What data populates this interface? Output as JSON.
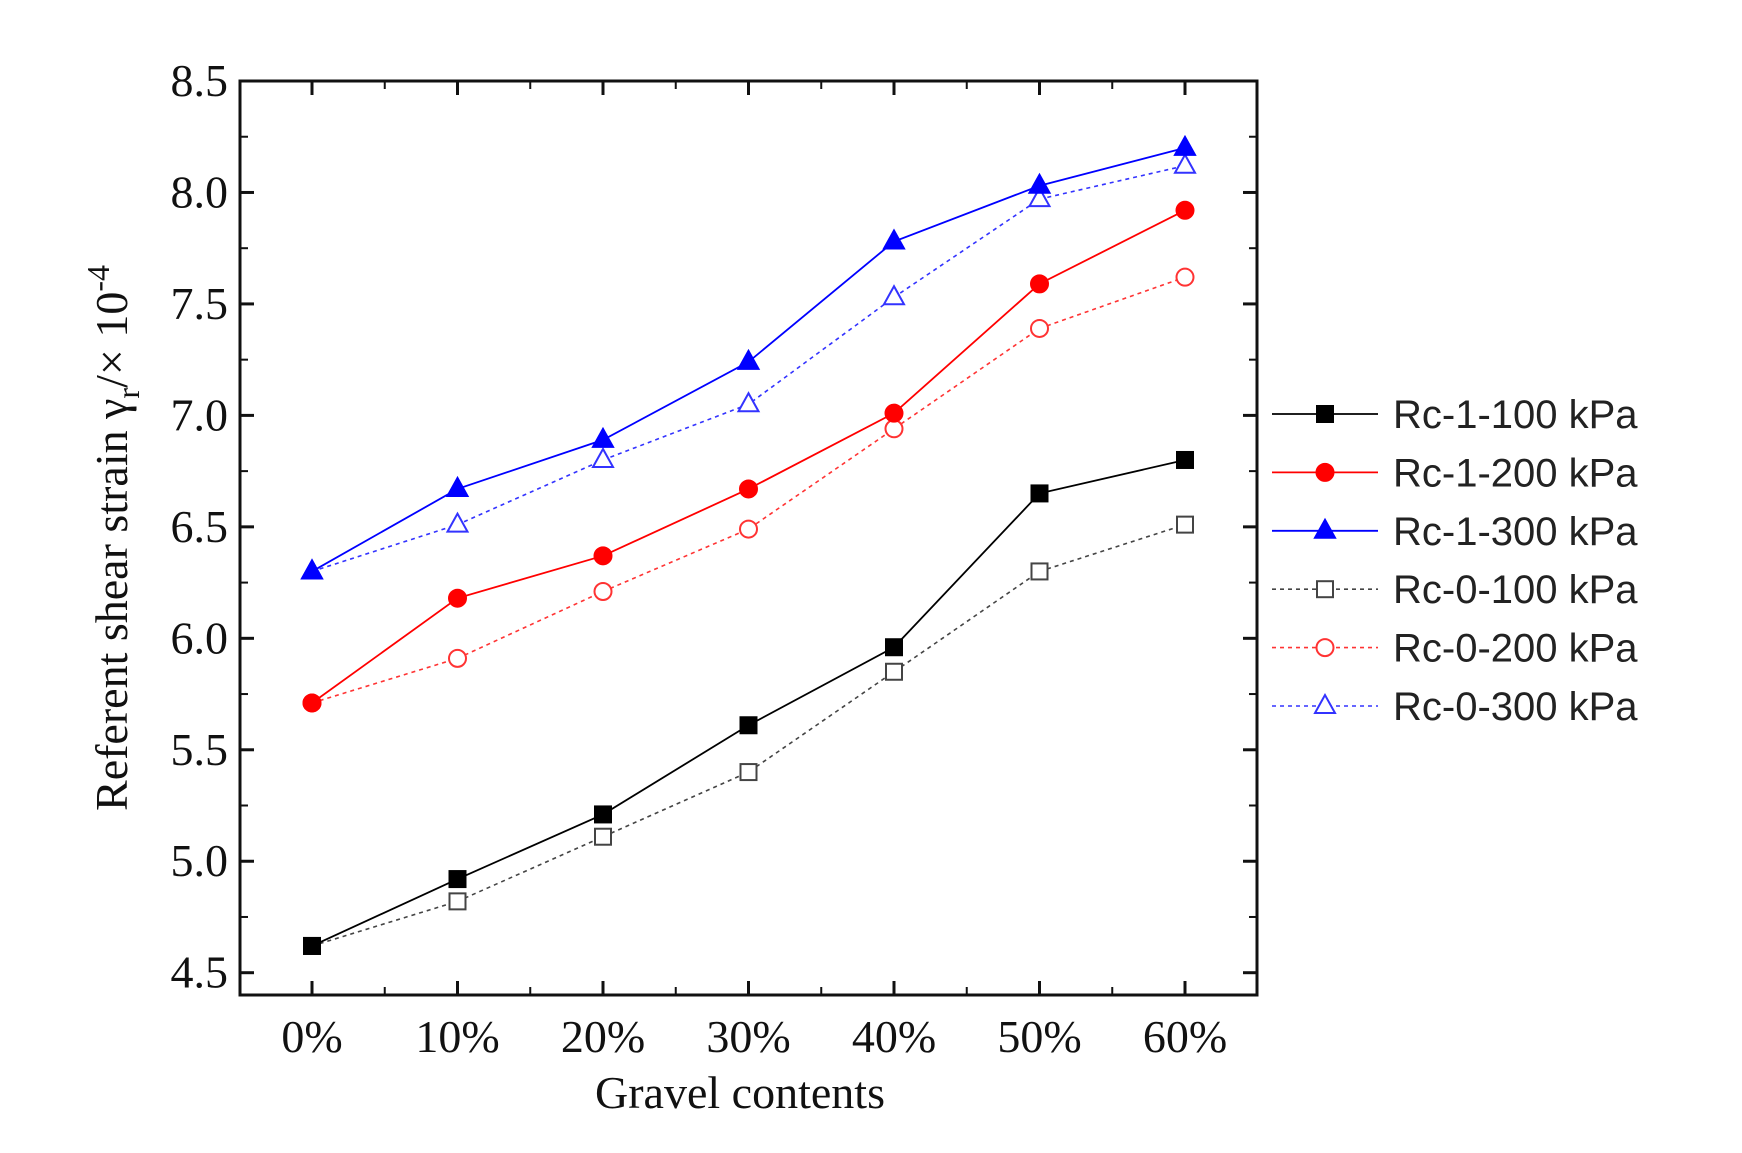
{
  "chart_data": {
    "type": "line",
    "title": "",
    "xlabel": "Gravel contents",
    "ylabel_main": "Referent shear strain γ",
    "ylabel_sub": "r",
    "ylabel_tail": "/× 10",
    "ylabel_sup": "-4",
    "categories": [
      "0%",
      "10%",
      "20%",
      "30%",
      "40%",
      "50%",
      "60%"
    ],
    "ylim": [
      4.4,
      8.5
    ],
    "yticks": [
      "4.5",
      "5.0",
      "5.5",
      "6.0",
      "6.5",
      "7.0",
      "7.5",
      "8.0",
      "8.5"
    ],
    "legend_position": "right",
    "series": [
      {
        "name": "Rc-1-100 kPa",
        "color": "#000000",
        "marker": "square",
        "filled": true,
        "dashed": false,
        "values": [
          4.62,
          4.92,
          5.21,
          5.61,
          5.96,
          6.65,
          6.8
        ]
      },
      {
        "name": "Rc-1-200 kPa",
        "color": "#ff0000",
        "marker": "circle",
        "filled": true,
        "dashed": false,
        "values": [
          5.71,
          6.18,
          6.37,
          6.67,
          7.01,
          7.59,
          7.92
        ]
      },
      {
        "name": "Rc-1-300 kPa",
        "color": "#0000ff",
        "marker": "triangle",
        "filled": true,
        "dashed": false,
        "values": [
          6.3,
          6.67,
          6.89,
          7.24,
          7.78,
          8.03,
          8.2
        ]
      },
      {
        "name": "Rc-0-100 kPa",
        "color": "#444444",
        "marker": "square",
        "filled": false,
        "dashed": true,
        "values": [
          4.62,
          4.82,
          5.11,
          5.4,
          5.85,
          6.3,
          6.51
        ]
      },
      {
        "name": "Rc-0-200 kPa",
        "color": "#ff3333",
        "marker": "circle",
        "filled": false,
        "dashed": true,
        "values": [
          5.71,
          5.91,
          6.21,
          6.49,
          6.94,
          7.39,
          7.62
        ]
      },
      {
        "name": "Rc-0-300 kPa",
        "color": "#3333ff",
        "marker": "triangle",
        "filled": false,
        "dashed": true,
        "values": [
          6.3,
          6.51,
          6.8,
          7.05,
          7.53,
          7.97,
          8.12
        ]
      }
    ]
  }
}
